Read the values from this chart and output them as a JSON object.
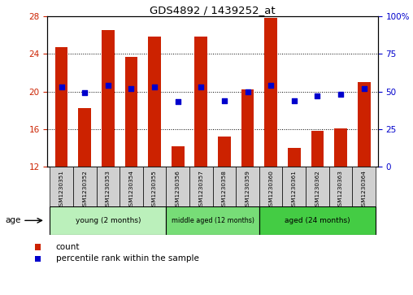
{
  "title": "GDS4892 / 1439252_at",
  "samples": [
    "GSM1230351",
    "GSM1230352",
    "GSM1230353",
    "GSM1230354",
    "GSM1230355",
    "GSM1230356",
    "GSM1230357",
    "GSM1230358",
    "GSM1230359",
    "GSM1230360",
    "GSM1230361",
    "GSM1230362",
    "GSM1230363",
    "GSM1230364"
  ],
  "counts": [
    24.7,
    18.2,
    26.5,
    23.7,
    25.8,
    14.2,
    25.8,
    15.2,
    20.2,
    27.8,
    14.0,
    15.8,
    16.1,
    21.0
  ],
  "percentiles": [
    53,
    49,
    54,
    52,
    53,
    43,
    53,
    44,
    50,
    54,
    44,
    47,
    48,
    52
  ],
  "ylim_left": [
    12,
    28
  ],
  "ylim_right": [
    0,
    100
  ],
  "yticks_left": [
    12,
    16,
    20,
    24,
    28
  ],
  "yticks_right": [
    0,
    25,
    50,
    75,
    100
  ],
  "bar_color": "#cc2200",
  "dot_color": "#0000cc",
  "bar_width": 0.55,
  "group_info": [
    [
      0,
      4,
      "young (2 months)",
      "#bbf0bb"
    ],
    [
      5,
      8,
      "middle aged (12 months)",
      "#77dd77"
    ],
    [
      9,
      13,
      "aged (24 months)",
      "#44cc44"
    ]
  ],
  "box_color": "#d0d0d0",
  "age_label": "age",
  "legend_count": "count",
  "legend_percentile": "percentile rank within the sample",
  "bar_color_left_tick": "#cc2200",
  "dot_color_right_tick": "#0000cc"
}
